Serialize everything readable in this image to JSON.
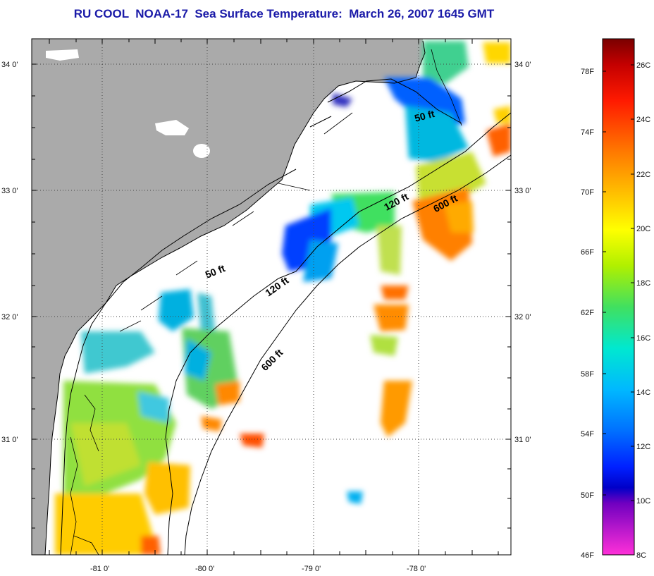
{
  "title": "RU COOL  NOAA-17  Sea Surface Temperature:  March 26, 2007 1645 GMT",
  "map": {
    "lat_ticks": [
      "34 0'",
      "33 0'",
      "32 0'",
      "31 0'"
    ],
    "lon_ticks": [
      "-81 0'",
      "-80 0'",
      "-79 0'",
      "-78 0'"
    ],
    "depth_contours": [
      "50 ft",
      "50 ft",
      "120 ft",
      "120 ft",
      "600 ft",
      "600 ft"
    ]
  },
  "colorbar": {
    "fahrenheit_labels": [
      "78F",
      "74F",
      "70F",
      "66F",
      "62F",
      "58F",
      "54F",
      "50F",
      "46F"
    ],
    "celsius_labels": [
      "26C",
      "24C",
      "22C",
      "20C",
      "18C",
      "16C",
      "14C",
      "12C",
      "10C",
      "8C"
    ],
    "gradient_colors": [
      "#7a0000",
      "#c40000",
      "#ff2a00",
      "#ff7a00",
      "#ffc000",
      "#ffff00",
      "#b0f000",
      "#40e060",
      "#00e0c0",
      "#00c8ff",
      "#0080ff",
      "#0030ff",
      "#0000c8",
      "#8000c0",
      "#ff30d0"
    ]
  },
  "colors": {
    "land": "#aaaaaa",
    "title": "#1a1aa8",
    "grid": "#444444"
  }
}
